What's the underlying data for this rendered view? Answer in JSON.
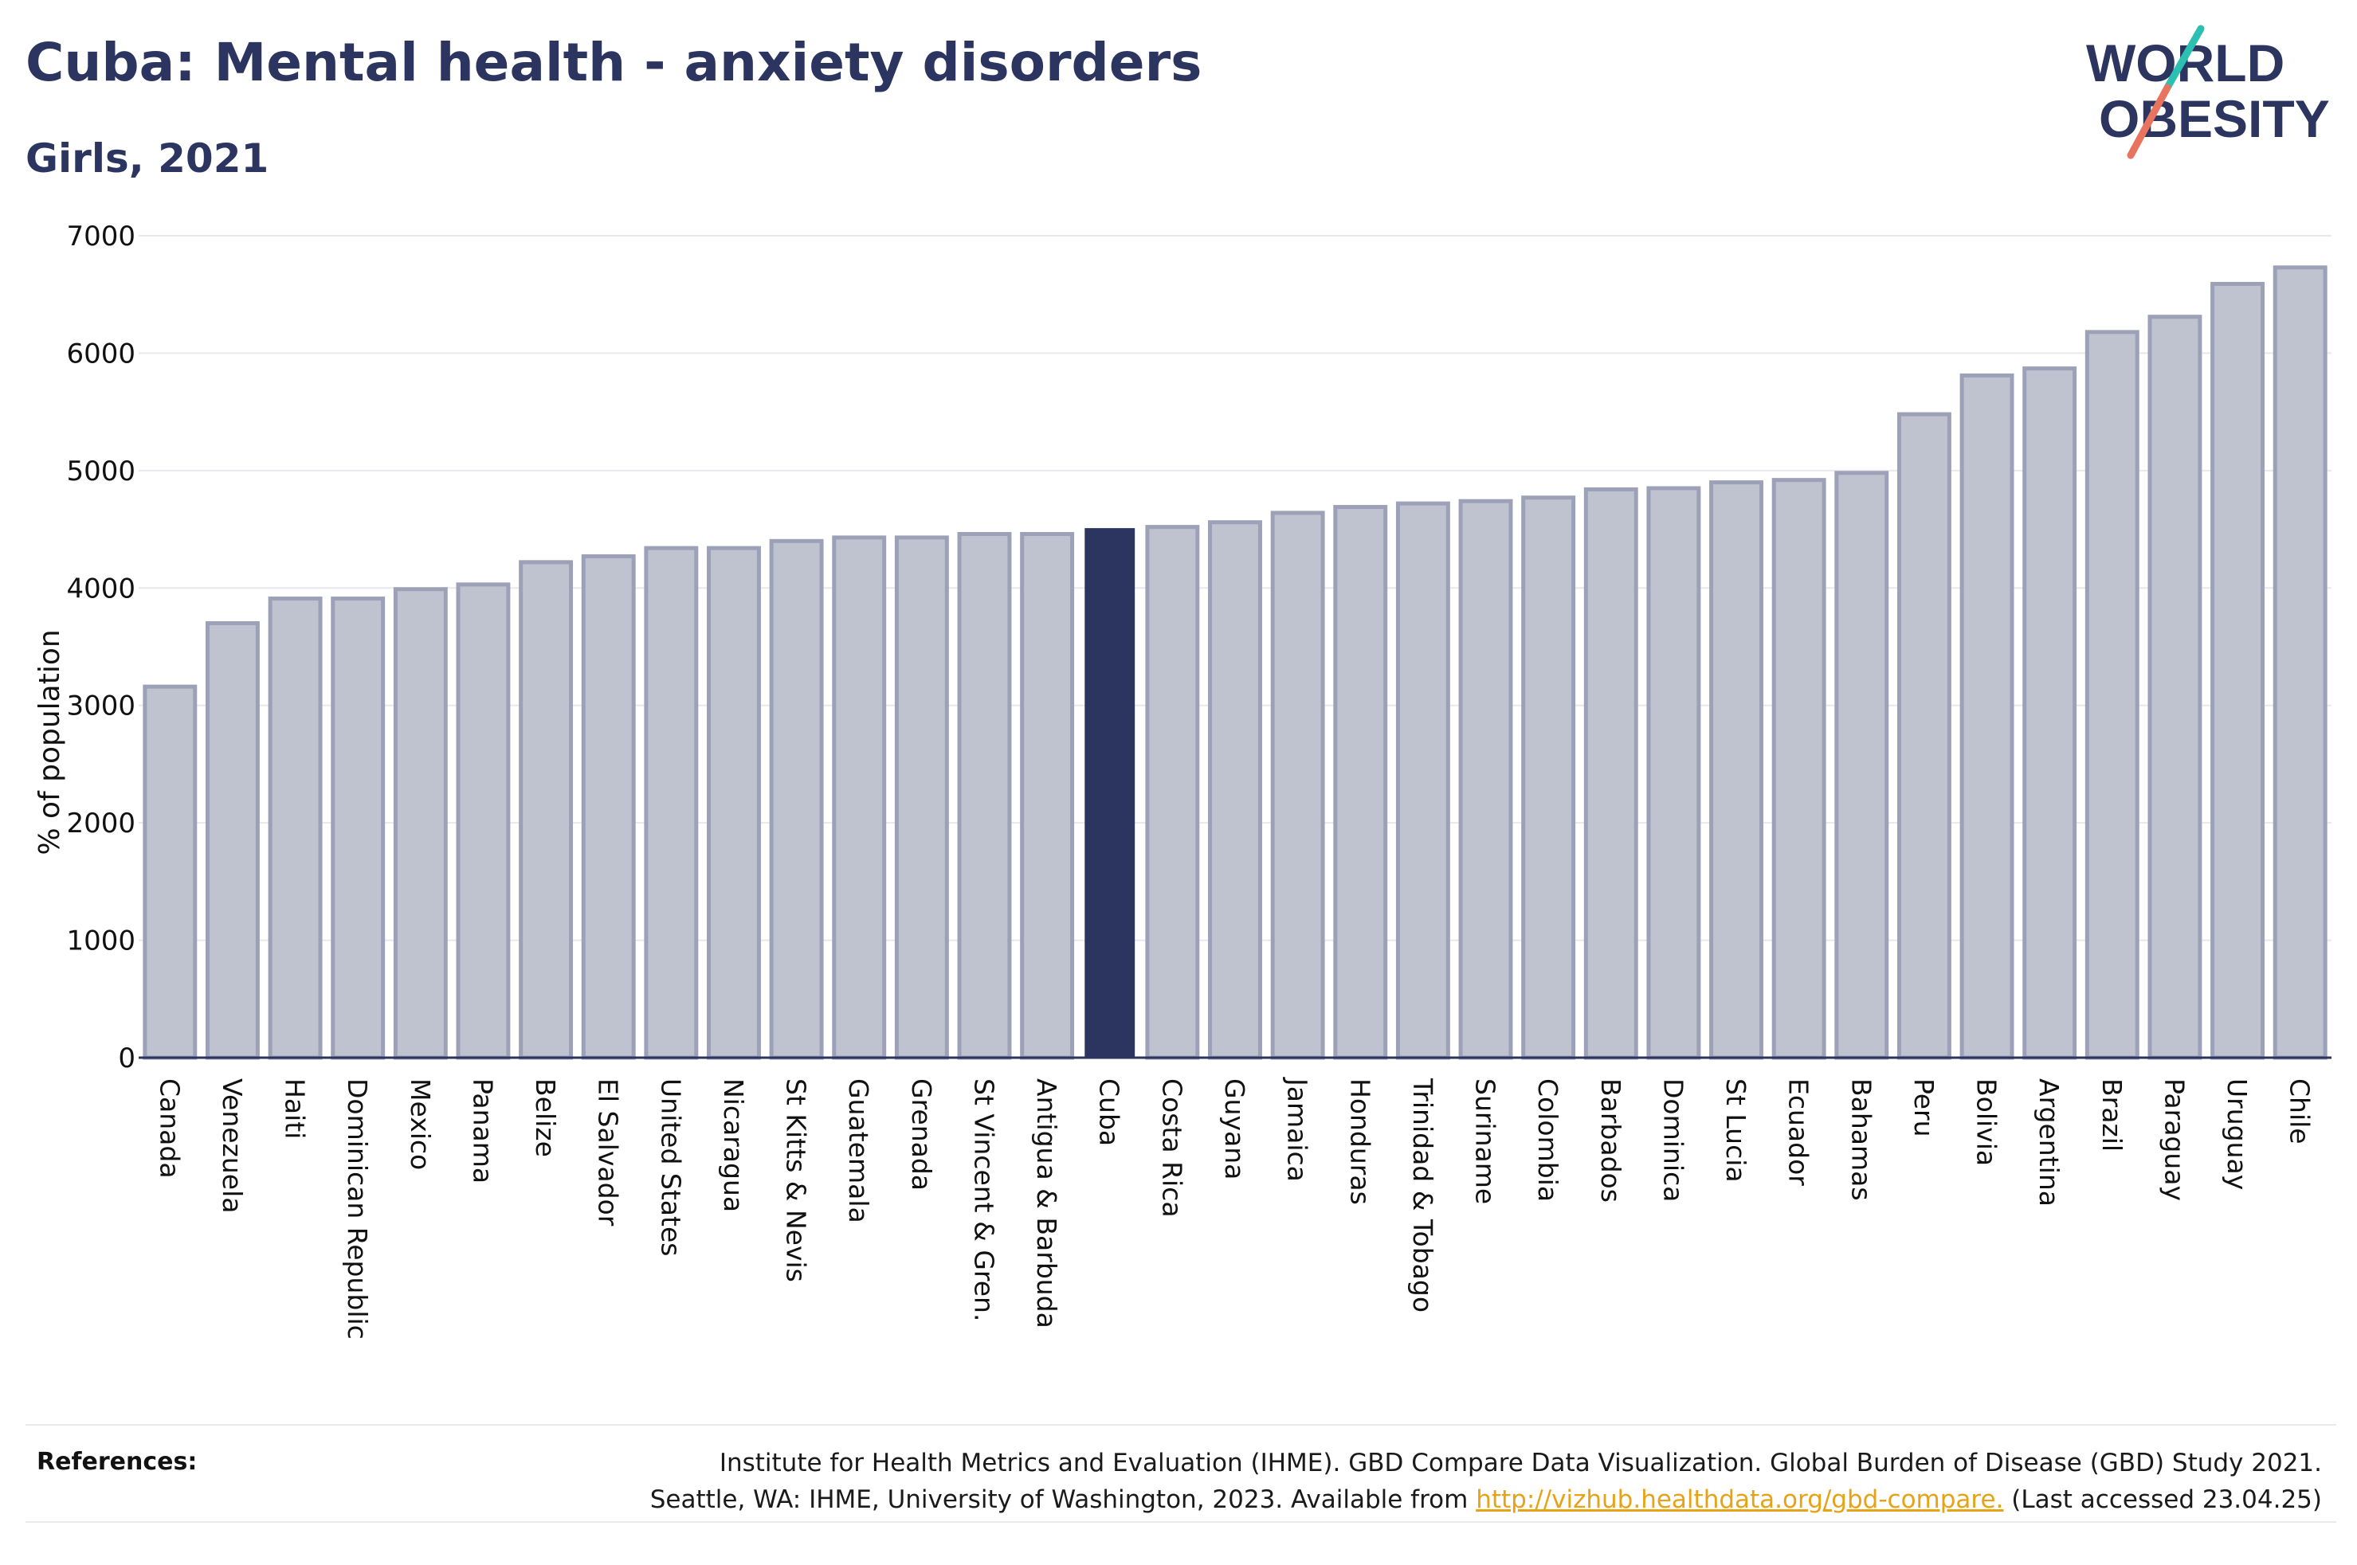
{
  "header": {
    "title": "Cuba: Mental health - anxiety disorders",
    "subtitle": "Girls, 2021"
  },
  "logo": {
    "line1": "WORLD",
    "line2": "OBESITY"
  },
  "colors": {
    "highlight": "#2b355f",
    "bar": "#bfc2cf",
    "bar_border": "#9ca1b8",
    "grid": "#e8e8ed",
    "link": "#e6a317",
    "logo_teal": "#2ebfb3",
    "logo_coral": "#e8735f"
  },
  "chart_data": {
    "type": "bar",
    "title": "Cuba: Mental health - anxiety disorders",
    "subtitle": "Girls, 2021",
    "xlabel": "",
    "ylabel": "% of population",
    "ylim": [
      0,
      7000
    ],
    "yticks": [
      0,
      1000,
      2000,
      3000,
      4000,
      5000,
      6000,
      7000
    ],
    "grid": true,
    "highlight": "Cuba",
    "categories": [
      "Canada",
      "Venezuela",
      "Haiti",
      "Dominican Republic",
      "Mexico",
      "Panama",
      "Belize",
      "El Salvador",
      "United States",
      "Nicaragua",
      "St Kitts & Nevis",
      "Guatemala",
      "Grenada",
      "St Vincent & Gren.",
      "Antigua & Barbuda",
      "Cuba",
      "Costa Rica",
      "Guyana",
      "Jamaica",
      "Honduras",
      "Trinidad & Tobago",
      "Suriname",
      "Colombia",
      "Barbados",
      "Dominica",
      "St Lucia",
      "Ecuador",
      "Bahamas",
      "Peru",
      "Bolivia",
      "Argentina",
      "Brazil",
      "Paraguay",
      "Uruguay",
      "Chile"
    ],
    "values": [
      3160,
      3700,
      3910,
      3910,
      3990,
      4030,
      4220,
      4270,
      4340,
      4340,
      4400,
      4430,
      4430,
      4460,
      4460,
      4510,
      4520,
      4560,
      4640,
      4690,
      4720,
      4740,
      4770,
      4840,
      4850,
      4900,
      4920,
      4980,
      5480,
      5810,
      5870,
      6180,
      6310,
      6590,
      6730
    ]
  },
  "references": {
    "label": "References:",
    "line1": "Institute for Health Metrics and Evaluation (IHME). GBD Compare Data Visualization. Global Burden of Disease (GBD) Study 2021.",
    "line2_prefix": "Seattle, WA: IHME, University of Washington, 2023. Available from ",
    "link": "http://vizhub.healthdata.org/gbd-compare.",
    "line2_suffix": " (Last accessed 23.04.25)"
  }
}
